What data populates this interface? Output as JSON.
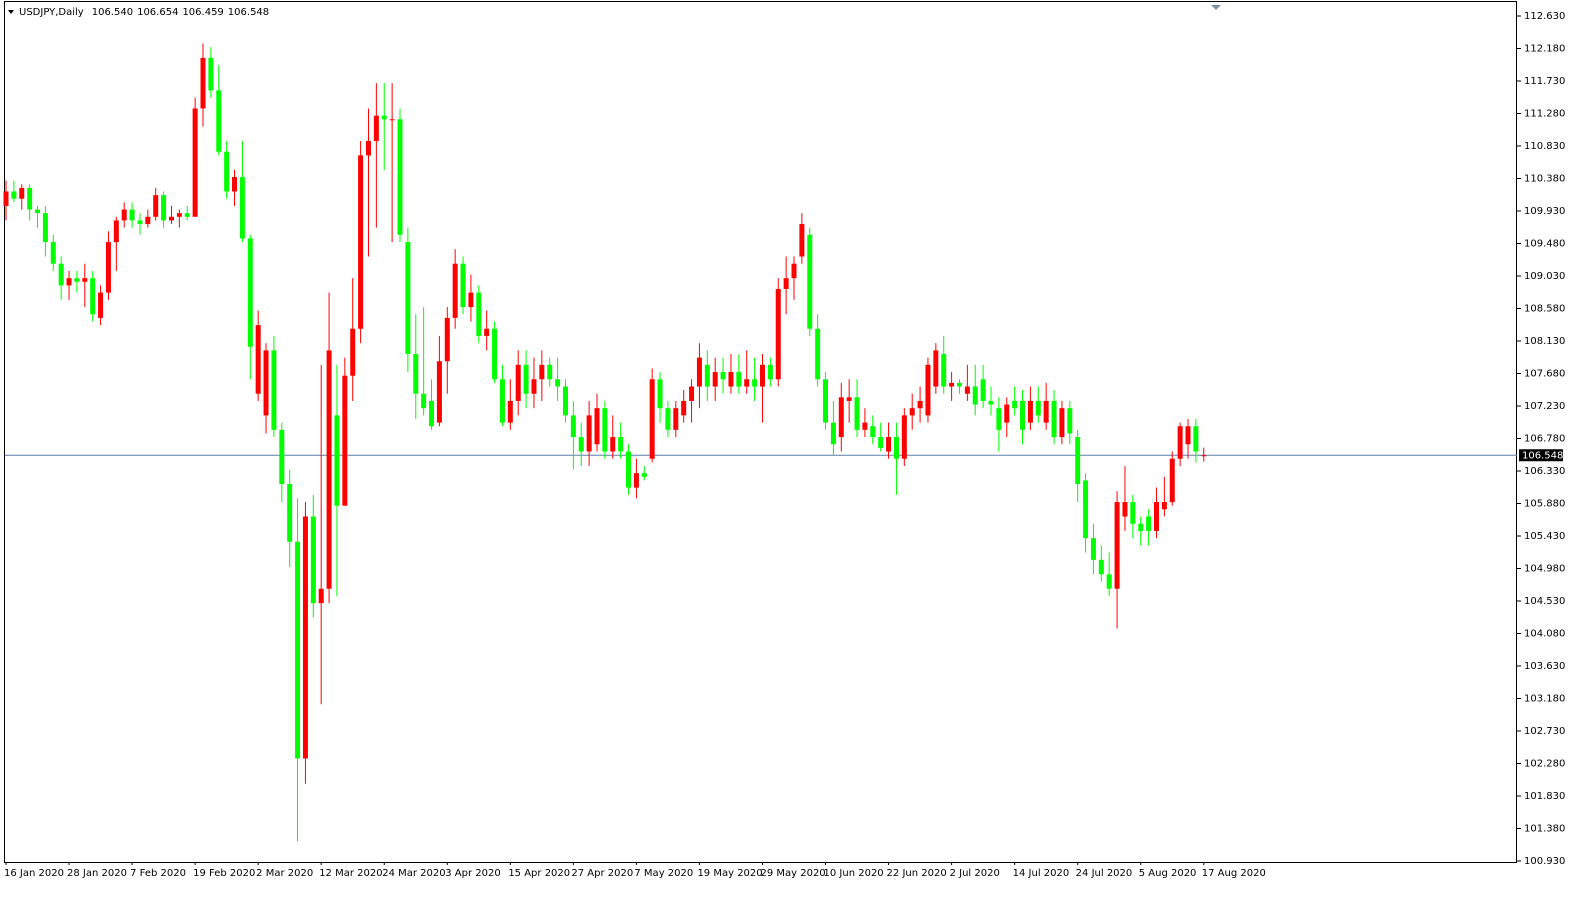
{
  "chart_data": {
    "type": "candlestick",
    "title": "USDJPY,Daily",
    "ohlc_header": [
      "106.540",
      "106.654",
      "106.459",
      "106.548"
    ],
    "up_color": "#ff0000",
    "down_color": "#00ff00",
    "price_line_color": "#5a7fa8",
    "price_line": 106.548,
    "categories": [
      "16 Jan 2020",
      null,
      null,
      null,
      null,
      null,
      null,
      null,
      "28 Jan 2020",
      null,
      null,
      null,
      null,
      null,
      null,
      null,
      "7 Feb 2020",
      null,
      null,
      null,
      null,
      null,
      null,
      null,
      "19 Feb 2020",
      null,
      null,
      null,
      null,
      null,
      null,
      null,
      "2 Mar 2020",
      null,
      null,
      null,
      null,
      null,
      null,
      null,
      "12 Mar 2020",
      null,
      null,
      null,
      null,
      null,
      null,
      null,
      "24 Mar 2020",
      null,
      null,
      null,
      null,
      null,
      null,
      null,
      "3 Apr 2020",
      null,
      null,
      null,
      null,
      null,
      null,
      null,
      "15 Apr 2020",
      null,
      null,
      null,
      null,
      null,
      null,
      null,
      "27 Apr 2020",
      null,
      null,
      null,
      null,
      null,
      null,
      null,
      "7 May 2020",
      null,
      null,
      null,
      null,
      null,
      null,
      null,
      "19 May 2020",
      null,
      null,
      null,
      null,
      null,
      null,
      null,
      "29 May 2020",
      null,
      null,
      null,
      null,
      null,
      null,
      null,
      "10 Jun 2020",
      null,
      null,
      null,
      null,
      null,
      null,
      null,
      "22 Jun 2020",
      null,
      null,
      null,
      null,
      null,
      null,
      null,
      "2 Jul 2020",
      null,
      null,
      null,
      null,
      null,
      null,
      null,
      "14 Jul 2020",
      null,
      null,
      null,
      null,
      null,
      null,
      null,
      "24 Jul 2020",
      null,
      null,
      null,
      null,
      null,
      null,
      null,
      "5 Aug 2020",
      null,
      null,
      null,
      null,
      null,
      null,
      null,
      "17 Aug 2020"
    ],
    "open": [
      110.0,
      110.2,
      110.1,
      110.25,
      109.95,
      109.9,
      109.5,
      109.2,
      108.9,
      109.0,
      108.95,
      109.0,
      108.45,
      108.8,
      109.5,
      109.8,
      109.95,
      109.8,
      109.75,
      109.85,
      110.15,
      109.8,
      109.85,
      109.9,
      109.85,
      111.35,
      112.05,
      111.6,
      110.75,
      110.2,
      110.4,
      109.55,
      107.4,
      107.1,
      108.0,
      106.9,
      106.15,
      105.35,
      102.35,
      105.7,
      104.5,
      104.7,
      107.1,
      105.85,
      107.65,
      108.3,
      110.7,
      110.9,
      111.25,
      111.2,
      111.2,
      109.5,
      107.95,
      107.4,
      107.3,
      107.0,
      107.85,
      108.45,
      109.2,
      108.6,
      108.8,
      108.2,
      108.3,
      107.6,
      107.0,
      107.3,
      107.8,
      107.4,
      107.6,
      107.8,
      107.6,
      107.5,
      107.1,
      106.8,
      106.6,
      106.7,
      107.2,
      106.6,
      106.8,
      106.6,
      106.1,
      106.3,
      106.5,
      107.6,
      107.2,
      106.9,
      107.1,
      107.3,
      107.5,
      107.8,
      107.5,
      107.7,
      107.5,
      107.7,
      107.5,
      107.6,
      107.5,
      107.8,
      107.6,
      108.85,
      109.0,
      109.3,
      109.6,
      108.3,
      107.6,
      107.0,
      106.8,
      107.3,
      107.35,
      106.9,
      106.95,
      106.8,
      106.6,
      106.8,
      106.5,
      107.1,
      107.2,
      107.1,
      107.5,
      107.95,
      107.5,
      107.55,
      107.4,
      107.5,
      107.6,
      107.3,
      107.2,
      107.0,
      107.3,
      107.3,
      107.0,
      107.3,
      107.0,
      107.3,
      106.8,
      107.2,
      106.8,
      106.2,
      105.4,
      105.1,
      104.9,
      104.7,
      105.7,
      105.9,
      105.6,
      105.7,
      105.5,
      105.8,
      105.9,
      106.5,
      106.7,
      106.95,
      106.54
    ],
    "high": [
      110.35,
      110.35,
      110.3,
      110.3,
      110.0,
      110.0,
      109.6,
      109.3,
      109.1,
      109.1,
      109.2,
      109.1,
      108.9,
      109.65,
      109.85,
      110.05,
      110.05,
      109.9,
      109.95,
      110.25,
      110.2,
      110.0,
      109.95,
      110.0,
      111.5,
      112.25,
      112.2,
      111.95,
      110.9,
      110.5,
      110.9,
      109.6,
      108.55,
      108.1,
      108.2,
      107.0,
      106.35,
      105.95,
      105.9,
      106.0,
      107.8,
      108.8,
      107.8,
      107.9,
      109.0,
      110.9,
      111.35,
      111.7,
      111.7,
      111.7,
      111.35,
      109.7,
      108.5,
      108.6,
      107.6,
      108.2,
      108.6,
      109.4,
      109.3,
      109.05,
      108.9,
      108.55,
      108.4,
      107.8,
      107.6,
      108.0,
      108.0,
      107.9,
      108.0,
      107.9,
      107.9,
      107.6,
      107.3,
      107.0,
      107.3,
      107.4,
      107.3,
      107.1,
      107.0,
      106.7,
      106.5,
      106.4,
      107.75,
      107.7,
      107.3,
      107.3,
      107.45,
      107.6,
      108.1,
      108.0,
      107.9,
      107.9,
      107.95,
      107.95,
      108.0,
      107.9,
      107.95,
      107.9,
      109.0,
      109.3,
      109.3,
      109.9,
      109.7,
      108.5,
      107.7,
      107.3,
      107.55,
      107.6,
      107.6,
      107.2,
      107.1,
      107.0,
      107.0,
      107.0,
      107.2,
      107.4,
      107.5,
      107.9,
      108.1,
      108.2,
      107.7,
      107.6,
      107.8,
      107.8,
      107.8,
      107.5,
      107.35,
      107.35,
      107.5,
      107.45,
      107.5,
      107.5,
      107.55,
      107.45,
      107.3,
      107.3,
      106.9,
      106.3,
      105.6,
      105.3,
      105.2,
      106.05,
      106.4,
      106.0,
      105.7,
      105.8,
      106.1,
      106.25,
      106.6,
      107.0,
      107.05,
      107.05,
      106.654
    ],
    "low": [
      109.8,
      110.05,
      109.95,
      109.8,
      109.7,
      109.3,
      109.1,
      108.7,
      108.7,
      108.8,
      108.6,
      108.4,
      108.35,
      108.7,
      109.1,
      109.7,
      109.7,
      109.6,
      109.7,
      109.8,
      109.7,
      109.75,
      109.7,
      109.8,
      109.85,
      111.1,
      111.5,
      110.7,
      110.1,
      110.0,
      109.5,
      107.6,
      107.3,
      106.85,
      106.8,
      105.9,
      105.0,
      101.2,
      102.0,
      104.3,
      103.1,
      104.5,
      104.6,
      105.85,
      107.3,
      108.1,
      109.3,
      109.7,
      110.5,
      109.5,
      109.5,
      107.7,
      107.05,
      107.1,
      106.9,
      106.95,
      107.4,
      108.3,
      108.5,
      108.4,
      108.1,
      108.0,
      107.55,
      106.95,
      106.9,
      107.1,
      107.2,
      107.2,
      107.3,
      107.5,
      107.3,
      107.0,
      106.35,
      106.4,
      106.4,
      106.6,
      106.5,
      106.5,
      106.5,
      106.0,
      105.95,
      106.2,
      106.45,
      107.0,
      106.8,
      106.8,
      107.0,
      107.0,
      107.2,
      107.3,
      107.3,
      107.4,
      107.4,
      107.4,
      107.4,
      107.3,
      107.0,
      107.5,
      107.5,
      108.5,
      108.7,
      109.2,
      108.2,
      107.5,
      106.9,
      106.55,
      106.6,
      107.0,
      106.8,
      106.8,
      106.7,
      106.6,
      106.5,
      106.0,
      106.4,
      106.9,
      107.0,
      107.0,
      107.4,
      107.4,
      107.3,
      107.4,
      107.3,
      107.1,
      107.2,
      107.1,
      106.6,
      106.8,
      107.1,
      106.7,
      106.9,
      107.0,
      106.9,
      106.7,
      106.7,
      106.7,
      105.9,
      105.2,
      104.9,
      104.8,
      104.6,
      104.15,
      105.5,
      105.4,
      105.3,
      105.3,
      105.4,
      105.7,
      105.85,
      106.4,
      106.5,
      106.45,
      106.459
    ],
    "close": [
      110.2,
      110.1,
      110.25,
      109.95,
      109.9,
      109.5,
      109.2,
      108.9,
      109.0,
      108.95,
      109.0,
      108.5,
      108.8,
      109.5,
      109.8,
      109.95,
      109.8,
      109.75,
      109.85,
      110.15,
      109.8,
      109.85,
      109.9,
      109.85,
      111.35,
      112.05,
      111.6,
      110.75,
      110.2,
      110.4,
      109.55,
      108.05,
      108.35,
      108.0,
      106.9,
      106.15,
      105.35,
      102.35,
      105.7,
      104.5,
      104.7,
      108.0,
      105.85,
      107.65,
      108.3,
      110.7,
      110.9,
      111.25,
      111.2,
      111.2,
      109.6,
      107.95,
      107.4,
      107.2,
      106.95,
      107.85,
      108.45,
      109.2,
      108.6,
      108.8,
      108.2,
      108.3,
      107.6,
      107.0,
      107.3,
      107.8,
      107.4,
      107.6,
      107.8,
      107.6,
      107.5,
      107.1,
      106.8,
      106.6,
      107.1,
      107.2,
      106.6,
      106.8,
      106.6,
      106.1,
      106.3,
      106.25,
      107.6,
      107.2,
      106.9,
      107.2,
      107.3,
      107.5,
      107.9,
      107.5,
      107.7,
      107.6,
      107.7,
      107.5,
      107.6,
      107.5,
      107.8,
      107.6,
      108.85,
      109.0,
      109.2,
      109.75,
      108.3,
      107.6,
      107.0,
      106.7,
      107.35,
      107.35,
      106.9,
      107.0,
      106.8,
      106.65,
      106.8,
      106.5,
      107.1,
      107.2,
      107.3,
      107.8,
      108.0,
      107.5,
      107.55,
      107.5,
      107.5,
      107.25,
      107.3,
      107.25,
      106.9,
      107.25,
      107.2,
      106.9,
      107.3,
      107.1,
      107.3,
      106.8,
      107.2,
      106.85,
      106.15,
      105.4,
      105.1,
      104.9,
      104.7,
      105.9,
      105.9,
      105.6,
      105.5,
      105.5,
      105.9,
      105.9,
      106.5,
      106.95,
      106.95,
      106.6,
      106.548
    ],
    "ylim": [
      100.93,
      112.63
    ],
    "yticks": [
      {
        "value": 112.63,
        "label": "112.630"
      },
      {
        "value": 112.18,
        "label": "112.180"
      },
      {
        "value": 111.73,
        "label": "111.730"
      },
      {
        "value": 111.28,
        "label": "111.280"
      },
      {
        "value": 110.83,
        "label": "110.830"
      },
      {
        "value": 110.38,
        "label": "110.380"
      },
      {
        "value": 109.93,
        "label": "109.930"
      },
      {
        "value": 109.48,
        "label": "109.480"
      },
      {
        "value": 109.03,
        "label": "109.030"
      },
      {
        "value": 108.58,
        "label": "108.580"
      },
      {
        "value": 108.13,
        "label": "108.130"
      },
      {
        "value": 107.68,
        "label": "107.680"
      },
      {
        "value": 107.23,
        "label": "107.230"
      },
      {
        "value": 106.78,
        "label": "106.780"
      },
      {
        "value": 106.33,
        "label": "106.330"
      },
      {
        "value": 105.88,
        "label": "105.880"
      },
      {
        "value": 105.43,
        "label": "105.430"
      },
      {
        "value": 104.98,
        "label": "104.980"
      },
      {
        "value": 104.53,
        "label": "104.530"
      },
      {
        "value": 104.08,
        "label": "104.080"
      },
      {
        "value": 103.63,
        "label": "103.630"
      },
      {
        "value": 103.18,
        "label": "103.180"
      },
      {
        "value": 102.73,
        "label": "102.730"
      },
      {
        "value": 102.28,
        "label": "102.280"
      },
      {
        "value": 101.83,
        "label": "101.830"
      },
      {
        "value": 101.38,
        "label": "101.380"
      },
      {
        "value": 100.93,
        "label": "100.930"
      }
    ],
    "grid": false
  }
}
